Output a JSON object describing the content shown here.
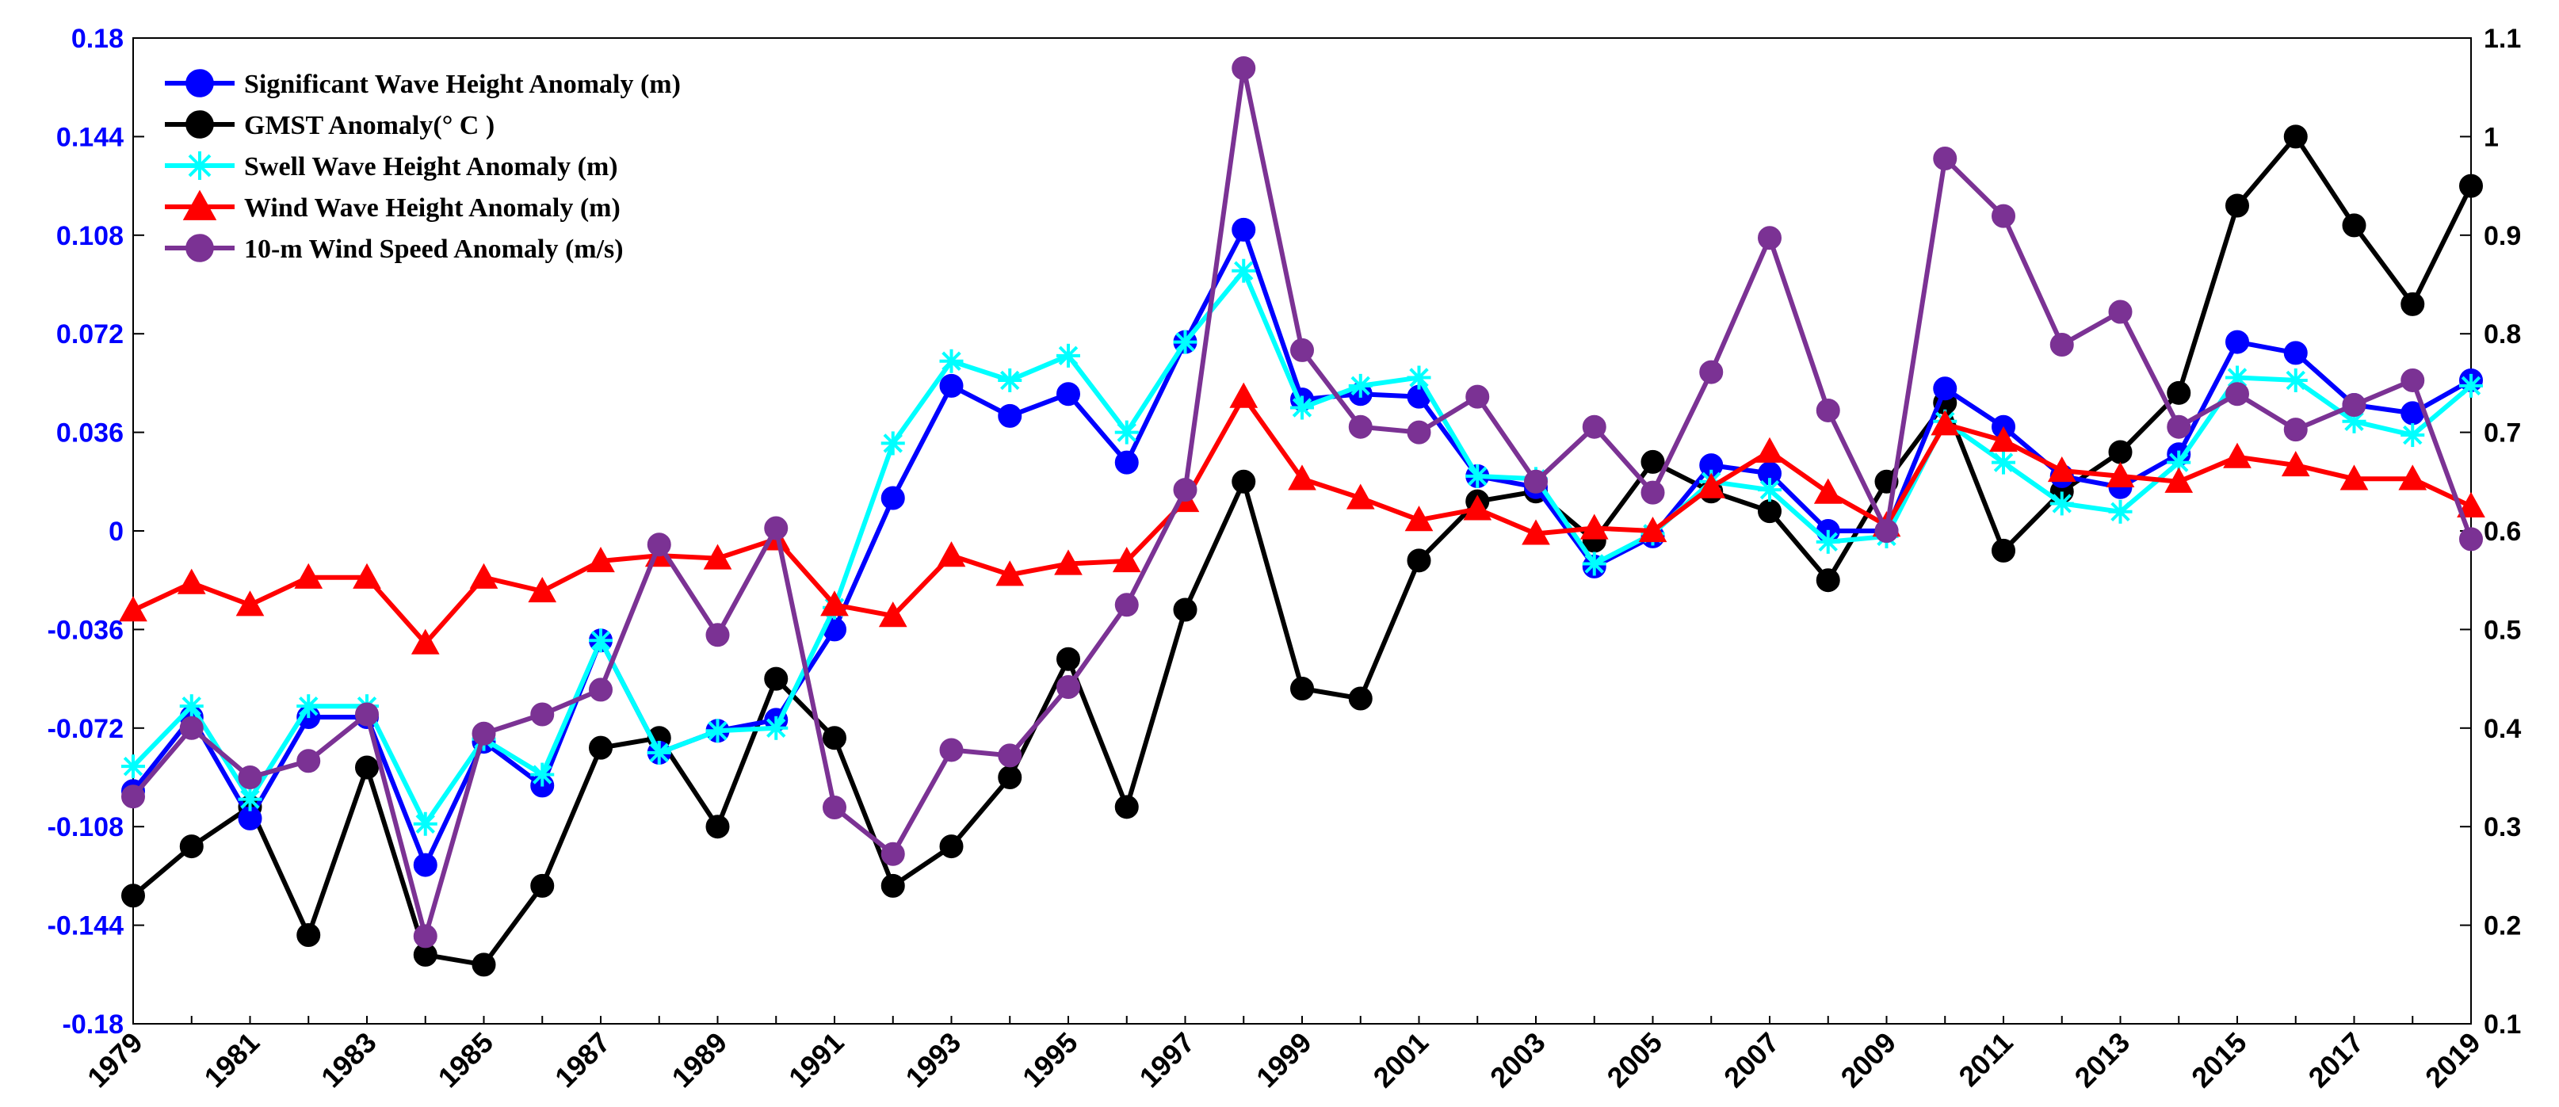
{
  "chart_data": {
    "type": "line",
    "title": "",
    "xlabel": "",
    "ylabel_left": "",
    "ylabel_right": "",
    "x": [
      1979,
      1980,
      1981,
      1982,
      1983,
      1984,
      1985,
      1986,
      1987,
      1988,
      1989,
      1990,
      1991,
      1992,
      1993,
      1994,
      1995,
      1996,
      1997,
      1998,
      1999,
      2000,
      2001,
      2002,
      2003,
      2004,
      2005,
      2006,
      2007,
      2008,
      2009,
      2010,
      2011,
      2012,
      2013,
      2014,
      2015,
      2016,
      2017,
      2018,
      2019
    ],
    "xlim": [
      1979,
      2019
    ],
    "x_tick_labels": [
      "1979",
      "1981",
      "1983",
      "1985",
      "1987",
      "1989",
      "1991",
      "1993",
      "1995",
      "1997",
      "1999",
      "2001",
      "2003",
      "2005",
      "2007",
      "2009",
      "2011",
      "2013",
      "2015",
      "2017",
      "2019"
    ],
    "ylim_left": [
      -0.18,
      0.18
    ],
    "ylim_right": [
      0.1,
      1.1
    ],
    "y_left_tick_labels": [
      "0.18",
      "0.144",
      "0.108",
      "0.072",
      "0.036",
      "0",
      "-0.036",
      "-0.072",
      "-0.108",
      "-0.144",
      "-0.18"
    ],
    "y_right_tick_labels": [
      "1.1",
      "1",
      "0.9",
      "0.8",
      "0.7",
      "0.6",
      "0.5",
      "0.4",
      "0.3",
      "0.2",
      "0.1"
    ],
    "grid": false,
    "legend_position": "top-left",
    "series": [
      {
        "name": "Significant Wave Height Anomaly (m)",
        "axis": "left",
        "color": "#0000ff",
        "marker": "circle",
        "values": [
          -0.095,
          -0.068,
          -0.105,
          -0.068,
          -0.068,
          -0.122,
          -0.077,
          -0.093,
          -0.04,
          -0.081,
          -0.073,
          -0.069,
          -0.036,
          0.012,
          0.053,
          0.042,
          0.05,
          0.025,
          0.069,
          0.11,
          0.048,
          0.05,
          0.049,
          0.02,
          0.016,
          -0.013,
          -0.002,
          0.024,
          0.021,
          0.0,
          0.0,
          0.052,
          0.038,
          0.02,
          0.016,
          0.028,
          0.069,
          0.065,
          0.046,
          0.043,
          0.055
        ]
      },
      {
        "name": "GMST Anomaly(° C )",
        "axis": "right",
        "color": "#000000",
        "marker": "circle",
        "values": [
          0.23,
          0.28,
          0.32,
          0.19,
          0.36,
          0.17,
          0.16,
          0.24,
          0.38,
          0.39,
          0.3,
          0.45,
          0.39,
          0.24,
          0.28,
          0.35,
          0.47,
          0.32,
          0.52,
          0.65,
          0.44,
          0.43,
          0.57,
          0.63,
          0.64,
          0.59,
          0.67,
          0.64,
          0.62,
          0.55,
          0.65,
          0.73,
          0.58,
          0.64,
          0.68,
          0.74,
          0.93,
          1.0,
          0.91,
          0.83,
          0.95
        ]
      },
      {
        "name": "Swell Wave Height Anomaly (m)",
        "axis": "left",
        "color": "#00ffff",
        "marker": "star",
        "values": [
          -0.086,
          -0.064,
          -0.098,
          -0.064,
          -0.064,
          -0.107,
          -0.076,
          -0.089,
          -0.04,
          -0.081,
          -0.073,
          -0.072,
          -0.028,
          0.032,
          0.062,
          0.055,
          0.064,
          0.036,
          0.069,
          0.095,
          0.045,
          0.053,
          0.056,
          0.02,
          0.019,
          -0.012,
          -0.001,
          0.018,
          0.015,
          -0.004,
          -0.002,
          0.04,
          0.025,
          0.01,
          0.007,
          0.025,
          0.056,
          0.055,
          0.04,
          0.035,
          0.053
        ]
      },
      {
        "name": "Wind Wave Height Anomaly (m)",
        "axis": "left",
        "color": "#ff0000",
        "marker": "triangle",
        "values": [
          -0.029,
          -0.019,
          -0.027,
          -0.017,
          -0.017,
          -0.041,
          -0.017,
          -0.022,
          -0.011,
          -0.009,
          -0.01,
          -0.003,
          -0.027,
          -0.031,
          -0.009,
          -0.016,
          -0.012,
          -0.011,
          0.011,
          0.049,
          0.019,
          0.012,
          0.004,
          0.008,
          -0.001,
          0.001,
          0.0,
          0.016,
          0.029,
          0.014,
          0.002,
          0.039,
          0.033,
          0.022,
          0.02,
          0.018,
          0.027,
          0.024,
          0.019,
          0.019,
          0.009
        ]
      },
      {
        "name": "10-m Wind Speed Anomaly (m/s)",
        "axis": "left",
        "color": "#7b3294",
        "marker": "circle",
        "values": [
          -0.097,
          -0.072,
          -0.09,
          -0.084,
          -0.067,
          -0.148,
          -0.074,
          -0.067,
          -0.058,
          -0.005,
          -0.038,
          0.001,
          -0.101,
          -0.118,
          -0.08,
          -0.082,
          -0.057,
          -0.027,
          0.015,
          0.169,
          0.066,
          0.038,
          0.036,
          0.049,
          0.018,
          0.038,
          0.014,
          0.058,
          0.107,
          0.044,
          0.0,
          0.136,
          0.115,
          0.068,
          0.08,
          0.038,
          0.05,
          0.037,
          0.046,
          0.055,
          -0.003
        ]
      }
    ]
  }
}
